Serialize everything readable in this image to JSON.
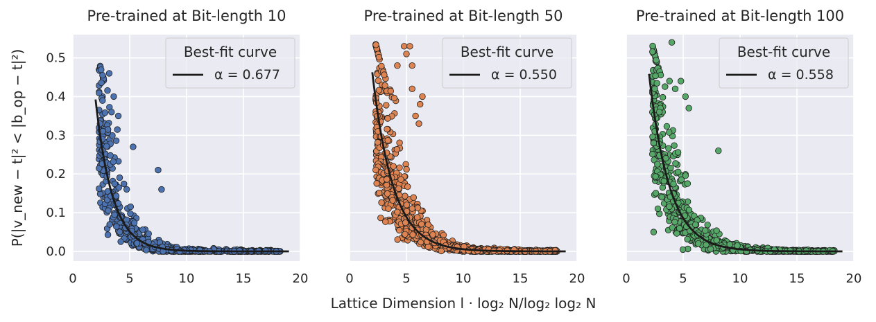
{
  "chart_data": {
    "type": "scatter",
    "xlabel": "Lattice Dimension l · log₂ N/log₂ log₂ N",
    "ylabel": "P(|v_new − t|² < |b_op − t|²)",
    "xlim": [
      0,
      20
    ],
    "ylim": [
      -0.025,
      0.56
    ],
    "xticks": [
      "0",
      "5",
      "10",
      "15",
      "20"
    ],
    "yticks": [
      "0.0",
      "0.1",
      "0.2",
      "0.3",
      "0.4",
      "0.5"
    ],
    "grid": true,
    "legend_placement": "top-right",
    "legend_title": "Best-fit curve",
    "fit_model": "y = A · exp(−α · x)",
    "fit_x_range": [
      2,
      19
    ],
    "panels": [
      {
        "title": "Pre-trained at Bit-length 10",
        "color": "#4c72b0",
        "alpha_label": "α = 0.677",
        "alpha": 0.677,
        "fit_amplitude": 1.52,
        "scatter_x_range": [
          2.3,
          18.3
        ],
        "n_points": 650,
        "highlights": [
          [
            3.2,
            0.46
          ],
          [
            3.6,
            0.4
          ],
          [
            3.4,
            0.36
          ],
          [
            4.0,
            0.35
          ],
          [
            5.3,
            0.27
          ],
          [
            7.5,
            0.21
          ],
          [
            2.6,
            0.29
          ],
          [
            7.8,
            0.16
          ]
        ]
      },
      {
        "title": "Pre-trained at Bit-length 50",
        "color": "#dd8452",
        "alpha_label": "α = 0.550",
        "alpha": 0.55,
        "fit_amplitude": 1.39,
        "scatter_x_range": [
          2.3,
          18.3
        ],
        "n_points": 900,
        "highlights": [
          [
            4.8,
            0.53
          ],
          [
            5.3,
            0.53
          ],
          [
            5.0,
            0.51
          ],
          [
            5.5,
            0.48
          ],
          [
            4.2,
            0.48
          ],
          [
            5.5,
            0.42
          ],
          [
            6.4,
            0.4
          ],
          [
            6.2,
            0.38
          ],
          [
            2.5,
            0.31
          ],
          [
            5.8,
            0.35
          ],
          [
            6.1,
            0.33
          ]
        ]
      },
      {
        "title": "Pre-trained at Bit-length 100",
        "color": "#55a868",
        "alpha_label": "α = 0.558",
        "alpha": 0.558,
        "fit_amplitude": 1.4,
        "scatter_x_range": [
          2.3,
          18.3
        ],
        "n_points": 850,
        "highlights": [
          [
            4.0,
            0.54
          ],
          [
            3.8,
            0.44
          ],
          [
            4.8,
            0.44
          ],
          [
            4.3,
            0.42
          ],
          [
            2.5,
            0.42
          ],
          [
            5.2,
            0.4
          ],
          [
            3.0,
            0.37
          ],
          [
            5.5,
            0.37
          ],
          [
            8.1,
            0.26
          ],
          [
            2.5,
            0.31
          ],
          [
            2.9,
            0.36
          ],
          [
            2.4,
            0.28
          ],
          [
            2.4,
            0.05
          ]
        ]
      }
    ]
  }
}
